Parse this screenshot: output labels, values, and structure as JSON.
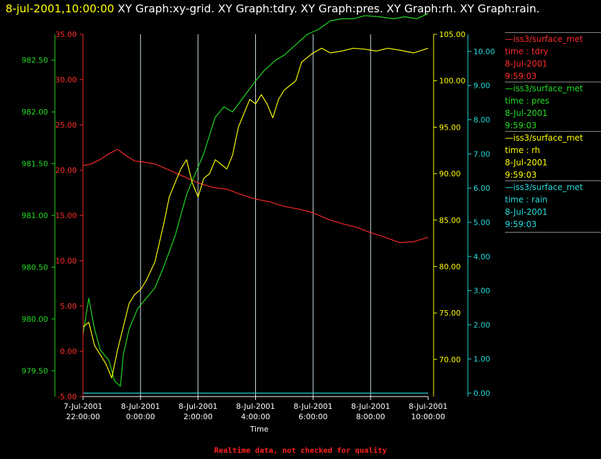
{
  "title": {
    "datetime": "8-jul-2001,10:00:00",
    "graphs": "XY Graph:xy-grid.  XY Graph:tdry.  XY Graph:pres.  XY Graph:rh.  XY Graph:rain."
  },
  "legend": [
    {
      "line1": "—iss3/surface_met",
      "line2": "time : tdry",
      "line3": "8-Jul-2001",
      "line4": "9:59:03",
      "color": "#ff2a2a"
    },
    {
      "line1": "—iss3/surface_met",
      "line2": "time : pres",
      "line3": "8-Jul-2001",
      "line4": "9:59:03",
      "color": "#22dd22"
    },
    {
      "line1": "—iss3/surface_met",
      "line2": "time : rh",
      "line3": "8-Jul-2001",
      "line4": "9:59:03",
      "color": "#ffff00"
    },
    {
      "line1": "—iss3/surface_met",
      "line2": "time : rain",
      "line3": "8-Jul-2001",
      "line4": "9:59:03",
      "color": "#22dddd"
    }
  ],
  "footer": "Realtime data, not checked for quality",
  "chart_data": {
    "type": "line",
    "xlabel": "Time",
    "x_ticks": [
      {
        "hours": 0,
        "line1": "7-Jul-2001",
        "line2": "22:00:00"
      },
      {
        "hours": 2,
        "line1": "8-Jul-2001",
        "line2": "0:00:00"
      },
      {
        "hours": 4,
        "line1": "8-Jul-2001",
        "line2": "2:00:00"
      },
      {
        "hours": 6,
        "line1": "8-Jul-2001",
        "line2": "4:00:00"
      },
      {
        "hours": 8,
        "line1": "8-Jul-2001",
        "line2": "6:00:00"
      },
      {
        "hours": 10,
        "line1": "8-Jul-2001",
        "line2": "8:00:00"
      },
      {
        "hours": 12,
        "line1": "8-Jul-2001",
        "line2": "10:00:00"
      }
    ],
    "grid": true,
    "axes": {
      "tdry": {
        "color": "#ff2a2a",
        "range": [
          -5,
          35
        ],
        "ticks": [
          "-5.00",
          "0.00",
          "5.00",
          "10.00",
          "15.00",
          "20.00",
          "25.00",
          "30.00",
          "35.00"
        ],
        "tick_values": [
          -5,
          0,
          5,
          10,
          15,
          20,
          25,
          30,
          35
        ]
      },
      "pres": {
        "color": "#22dd22",
        "range": [
          979.25,
          982.75
        ],
        "ticks": [
          "979.50",
          "980.00",
          "980.50",
          "981.00",
          "981.50",
          "982.00",
          "982.50"
        ],
        "tick_values": [
          979.5,
          980,
          980.5,
          981,
          981.5,
          982,
          982.5
        ]
      },
      "rh": {
        "color": "#ffff00",
        "range": [
          66,
          105
        ],
        "ticks": [
          "70.00",
          "75.00",
          "80.00",
          "85.00",
          "90.00",
          "95.00",
          "100.00",
          "105.00"
        ],
        "tick_values": [
          70,
          75,
          80,
          85,
          90,
          95,
          100,
          105
        ]
      },
      "rain": {
        "color": "#22dddd",
        "range": [
          -0.1,
          10.5
        ],
        "ticks": [
          "0.00",
          "1.00",
          "2.00",
          "3.00",
          "4.00",
          "5.00",
          "6.00",
          "7.00",
          "8.00",
          "9.00",
          "10.00"
        ],
        "tick_values": [
          0,
          1,
          2,
          3,
          4,
          5,
          6,
          7,
          8,
          9,
          10
        ]
      }
    },
    "series": [
      {
        "axis": "tdry",
        "color": "#ff2a2a",
        "x": [
          0,
          0.3,
          0.6,
          0.9,
          1.2,
          1.5,
          1.8,
          2.1,
          2.5,
          3.0,
          3.5,
          4.0,
          4.5,
          5.0,
          5.5,
          6.0,
          6.5,
          7.0,
          7.5,
          8.0,
          8.5,
          9.0,
          9.5,
          10.0,
          10.5,
          11.0,
          11.5,
          12.0
        ],
        "values": [
          20.5,
          20.7,
          21.2,
          21.8,
          22.3,
          21.6,
          21.0,
          20.9,
          20.7,
          20.0,
          19.3,
          18.6,
          18.1,
          17.9,
          17.3,
          16.8,
          16.5,
          16.0,
          15.7,
          15.3,
          14.6,
          14.1,
          13.7,
          13.1,
          12.6,
          12.0,
          12.1,
          12.6
        ]
      },
      {
        "axis": "pres",
        "color": "#22dd22",
        "x": [
          0,
          0.2,
          0.4,
          0.6,
          0.9,
          1.1,
          1.3,
          1.4,
          1.6,
          1.9,
          2.2,
          2.5,
          2.8,
          3.2,
          3.6,
          3.9,
          4.2,
          4.6,
          4.9,
          5.2,
          5.6,
          6.0,
          6.3,
          6.7,
          7.0,
          7.4,
          7.8,
          8.2,
          8.6,
          9.0,
          9.4,
          9.8,
          10.3,
          10.8,
          11.2,
          11.6,
          12.0
        ],
        "values": [
          979.85,
          980.2,
          979.9,
          979.7,
          979.6,
          979.4,
          979.35,
          979.65,
          979.9,
          980.1,
          980.2,
          980.3,
          980.5,
          980.8,
          981.2,
          981.4,
          981.6,
          981.95,
          982.05,
          982.0,
          982.15,
          982.3,
          982.4,
          982.5,
          982.55,
          982.65,
          982.75,
          982.8,
          982.88,
          982.9,
          982.9,
          982.93,
          982.92,
          982.9,
          982.92,
          982.9,
          982.95
        ]
      },
      {
        "axis": "rh",
        "color": "#ffff00",
        "x": [
          0,
          0.2,
          0.4,
          0.6,
          0.8,
          1.0,
          1.2,
          1.4,
          1.6,
          1.8,
          2.0,
          2.2,
          2.5,
          2.8,
          3.0,
          3.2,
          3.4,
          3.6,
          3.8,
          4.0,
          4.2,
          4.4,
          4.6,
          4.8,
          5.0,
          5.2,
          5.4,
          5.6,
          5.8,
          6.0,
          6.2,
          6.4,
          6.6,
          6.8,
          7.0,
          7.2,
          7.4,
          7.6,
          7.8,
          8.0,
          8.3,
          8.6,
          9.0,
          9.4,
          9.8,
          10.2,
          10.6,
          11.0,
          11.5,
          12.0
        ],
        "values": [
          73.5,
          74.0,
          71.5,
          70.5,
          69.5,
          68.0,
          71.0,
          73.5,
          76.0,
          77.0,
          77.5,
          78.5,
          80.5,
          84.5,
          87.5,
          89.0,
          90.5,
          91.5,
          89.0,
          87.5,
          89.5,
          90.0,
          91.5,
          91.0,
          90.5,
          92.0,
          95.0,
          96.5,
          98.0,
          97.5,
          98.5,
          97.5,
          96.0,
          98.0,
          99.0,
          99.5,
          100.0,
          102.0,
          102.5,
          103.0,
          103.5,
          103.0,
          103.2,
          103.5,
          103.4,
          103.2,
          103.5,
          103.3,
          103.0,
          103.5
        ]
      },
      {
        "axis": "rain",
        "color": "#22dddd",
        "x": [
          0,
          12
        ],
        "values": [
          0,
          0
        ]
      }
    ]
  }
}
